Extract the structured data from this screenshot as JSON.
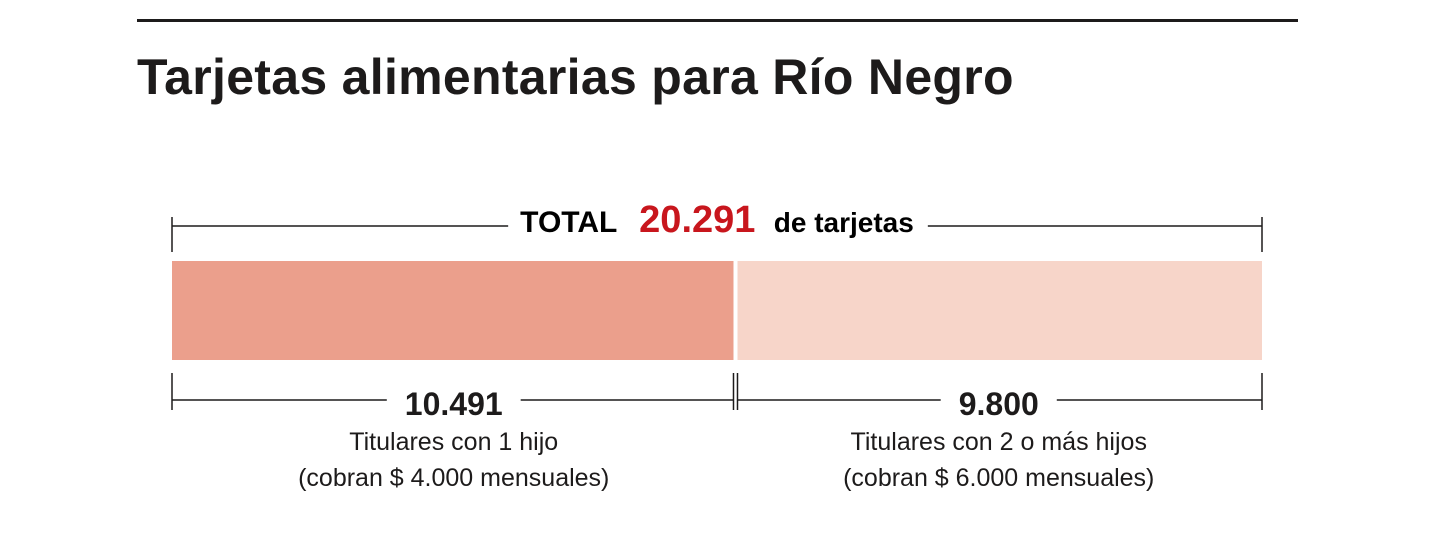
{
  "title": "Tarjetas alimentarias para Río Negro",
  "chart_data": {
    "type": "bar",
    "orientation": "horizontal-stacked",
    "title": "Tarjetas alimentarias para Río Negro",
    "total": {
      "prefix": "TOTAL",
      "value": 20291,
      "value_label": "20.291",
      "suffix": "de tarjetas"
    },
    "categories": [
      "Titulares con 1 hijo",
      "Titulares con 2 o más hijos"
    ],
    "values": [
      10491,
      9800
    ],
    "series": [
      {
        "value": 10491,
        "value_label": "10.491",
        "label": "Titulares con 1 hijo",
        "sublabel": "(cobran $ 4.000 mensuales)",
        "color": "#eb9f8c"
      },
      {
        "value": 9800,
        "value_label": "9.800",
        "label": "Titulares con 2 o más hijos",
        "sublabel": "(cobran $ 6.000 mensuales)",
        "color": "#f7d5c9"
      }
    ],
    "accent_color": "#c8161d",
    "grid": false
  }
}
